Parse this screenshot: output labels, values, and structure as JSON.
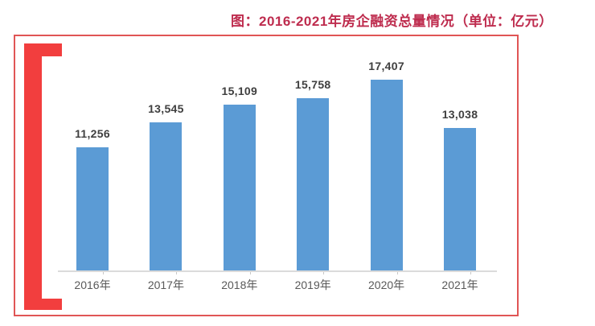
{
  "title": {
    "text": "图：2016-2021年房企融资总量情况（单位：亿元）",
    "color": "#BE2C4E"
  },
  "chart_data": {
    "type": "bar",
    "title": "图：2016-2021年房企融资总量情况（单位：亿元）",
    "unit": "亿元",
    "categories": [
      "2016年",
      "2017年",
      "2018年",
      "2019年",
      "2020年",
      "2021年"
    ],
    "values": [
      11256,
      13545,
      15109,
      15758,
      17407,
      13038
    ],
    "value_labels": [
      "11,256",
      "13,545",
      "15,109",
      "15,758",
      "17,407",
      "13,038"
    ],
    "xlabel": "",
    "ylabel": "",
    "ylim": [
      0,
      20000
    ],
    "grid": false,
    "legend": "none",
    "y_axis_visible": false,
    "bar_color": "#5B9BD5",
    "value_label_color": "#3F3F3F",
    "axis_label_color": "#595959",
    "axis_line_color": "#DBDBDB",
    "tick_color": "#C8C8C8"
  },
  "decorations": {
    "frame_border_color": "#E05555",
    "bracket_color": "#F23E3E"
  }
}
